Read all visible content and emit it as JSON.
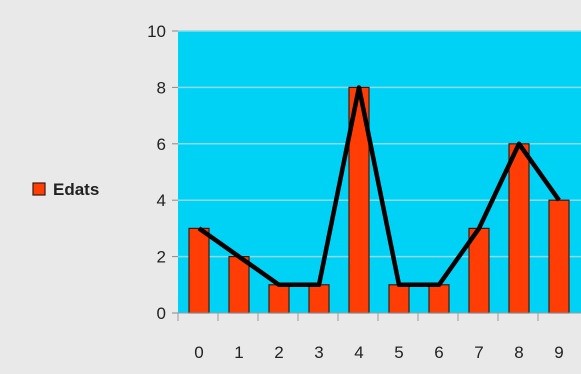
{
  "chart_data": {
    "type": "bar",
    "categories": [
      "0",
      "1",
      "2",
      "3",
      "4",
      "5",
      "6",
      "7",
      "8",
      "9"
    ],
    "series": [
      {
        "name": "Edats",
        "values": [
          3,
          2,
          1,
          1,
          8,
          1,
          1,
          3,
          6,
          4
        ]
      }
    ],
    "overlay_line": {
      "values": [
        3,
        2,
        1,
        1,
        8,
        1,
        1,
        3,
        6,
        4
      ],
      "color": "#000000"
    },
    "ylim": [
      0,
      10
    ],
    "yticks": [
      "0",
      "2",
      "4",
      "6",
      "8",
      "10"
    ],
    "grid": true,
    "legend_position": "left",
    "colors": {
      "plot_background": "#00d2f5",
      "page_background": "#e9e9e9",
      "bar_fill": "#ff3d05",
      "bar_stroke": "#3a1a10",
      "grid": "#8fd9e6",
      "line": "#000000"
    }
  }
}
